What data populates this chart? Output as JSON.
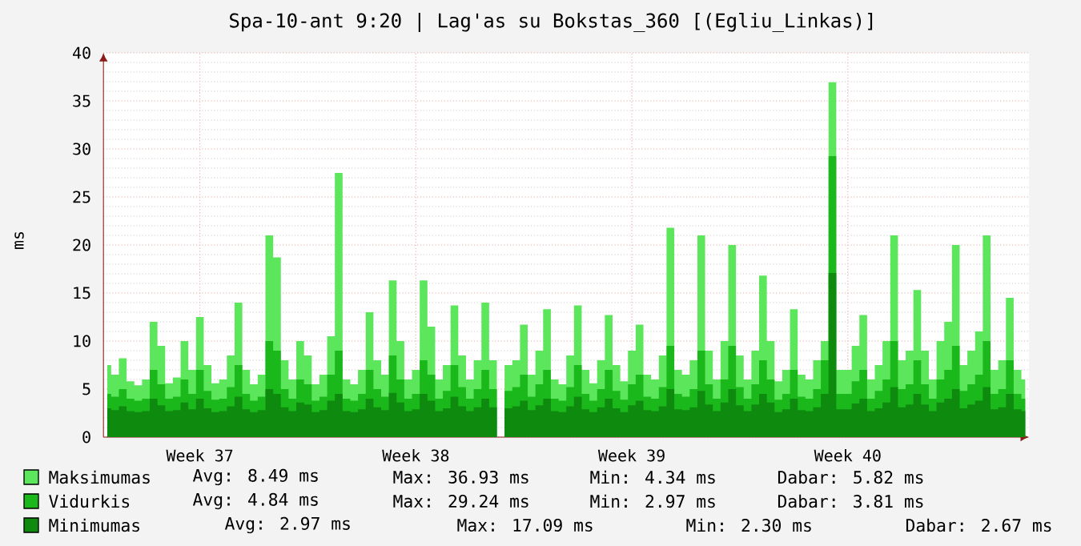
{
  "chart_data": {
    "type": "area",
    "title": "Spa-10-ant 9:20 | Lag'as su Bokstas_360 [(Egliu_Linkas)]",
    "ylabel": "ms",
    "categories": [
      null,
      null,
      null,
      null,
      null,
      null,
      null,
      null,
      null,
      null,
      null,
      null,
      "Week 37",
      null,
      null,
      null,
      null,
      null,
      null,
      null,
      null,
      null,
      null,
      null,
      null,
      null,
      null,
      null,
      null,
      null,
      null,
      null,
      null,
      null,
      null,
      null,
      null,
      null,
      null,
      null,
      "Week 38",
      null,
      null,
      null,
      null,
      null,
      null,
      null,
      null,
      null,
      null,
      null,
      null,
      null,
      null,
      null,
      null,
      null,
      null,
      null,
      null,
      null,
      null,
      null,
      null,
      null,
      null,
      null,
      "Week 39",
      null,
      null,
      null,
      null,
      null,
      null,
      null,
      null,
      null,
      null,
      null,
      null,
      null,
      null,
      null,
      null,
      null,
      null,
      null,
      null,
      null,
      null,
      null,
      null,
      null,
      null,
      null,
      "Week 40",
      null,
      null,
      null,
      null,
      null,
      null,
      null,
      null,
      null,
      null,
      null,
      null,
      null,
      null,
      null,
      null,
      null,
      null,
      null,
      null,
      null,
      null,
      null
    ],
    "series": [
      {
        "name": "Maksimumas",
        "color": "#5ce65c",
        "values": [
          7.5,
          6.5,
          8.2,
          5.8,
          5.4,
          6.0,
          12.0,
          9.5,
          5.6,
          6.2,
          10.0,
          7.0,
          12.5,
          7.5,
          5.6,
          6.0,
          8.5,
          14.0,
          7.0,
          5.5,
          6.5,
          21.0,
          18.7,
          8.0,
          6.0,
          10.0,
          8.5,
          5.5,
          6.5,
          10.5,
          27.5,
          6.0,
          5.5,
          7.0,
          13.0,
          8.0,
          6.5,
          16.3,
          10.0,
          6.0,
          7.0,
          16.3,
          11.5,
          6.0,
          7.5,
          13.7,
          8.5,
          6.0,
          8.0,
          14.0,
          8.0,
          null,
          7.5,
          8.0,
          11.7,
          6.5,
          9.0,
          13.3,
          6.0,
          5.5,
          8.5,
          13.7,
          7.0,
          5.6,
          8.0,
          12.7,
          7.5,
          5.8,
          9.0,
          11.7,
          6.5,
          6.0,
          8.5,
          21.8,
          7.0,
          6.5,
          8.0,
          21.0,
          9.0,
          6.0,
          10.0,
          20.0,
          8.5,
          6.0,
          9.0,
          16.8,
          10.0,
          5.8,
          7.0,
          13.3,
          6.5,
          6.0,
          8.0,
          10.0,
          36.93,
          7.0,
          7.0,
          9.5,
          12.7,
          6.0,
          7.5,
          10.0,
          21.0,
          8.0,
          9.0,
          15.3,
          9.0,
          6.0,
          10.0,
          12.0,
          20.0,
          7.5,
          9.0,
          11.0,
          21.0,
          7.0,
          8.0,
          14.5,
          7.0,
          6.0
        ]
      },
      {
        "name": "Vidurkis",
        "color": "#1ab81a",
        "values": [
          4.5,
          4.2,
          5.0,
          4.0,
          3.8,
          4.0,
          7.0,
          5.5,
          4.0,
          4.2,
          6.0,
          4.5,
          7.0,
          4.8,
          3.9,
          4.0,
          5.2,
          7.5,
          4.5,
          3.8,
          4.2,
          10.0,
          9.0,
          5.0,
          4.0,
          6.0,
          5.5,
          3.8,
          4.2,
          6.5,
          9.0,
          4.0,
          3.8,
          4.5,
          7.0,
          5.0,
          4.2,
          8.5,
          6.0,
          4.0,
          4.5,
          8.0,
          6.5,
          4.0,
          4.8,
          7.5,
          5.2,
          4.0,
          5.0,
          7.0,
          5.0,
          null,
          4.8,
          5.2,
          6.5,
          4.2,
          5.5,
          7.0,
          4.0,
          3.8,
          5.2,
          7.5,
          4.5,
          3.8,
          5.0,
          7.0,
          4.8,
          3.9,
          5.5,
          6.5,
          4.2,
          4.0,
          5.2,
          9.5,
          4.5,
          4.2,
          5.0,
          9.0,
          5.5,
          4.0,
          6.0,
          9.5,
          5.2,
          4.0,
          5.5,
          8.0,
          6.0,
          3.9,
          4.5,
          7.0,
          4.2,
          4.0,
          5.0,
          8.0,
          29.24,
          4.5,
          4.5,
          5.8,
          7.0,
          4.0,
          4.8,
          6.0,
          10.0,
          5.0,
          5.5,
          8.0,
          5.5,
          4.0,
          6.0,
          7.0,
          9.5,
          4.8,
          5.5,
          6.5,
          10.0,
          4.5,
          5.0,
          8.0,
          4.5,
          4.0
        ]
      },
      {
        "name": "Minimumas",
        "color": "#0e8a0e",
        "values": [
          3.0,
          2.8,
          3.2,
          2.7,
          2.6,
          2.7,
          4.0,
          3.3,
          2.7,
          2.8,
          3.6,
          2.9,
          4.0,
          3.0,
          2.6,
          2.7,
          3.2,
          4.2,
          2.9,
          2.6,
          2.8,
          5.0,
          4.5,
          3.1,
          2.7,
          3.6,
          3.4,
          2.6,
          2.8,
          3.8,
          4.5,
          2.7,
          2.6,
          2.9,
          4.0,
          3.1,
          2.8,
          4.6,
          3.6,
          2.7,
          2.9,
          4.5,
          3.8,
          2.7,
          3.0,
          4.2,
          3.2,
          2.7,
          3.1,
          4.0,
          3.1,
          null,
          3.0,
          3.2,
          3.8,
          2.8,
          3.3,
          4.0,
          2.7,
          2.6,
          3.2,
          4.2,
          2.9,
          2.6,
          3.1,
          4.0,
          3.0,
          2.6,
          3.3,
          3.8,
          2.8,
          2.7,
          3.2,
          5.0,
          2.9,
          2.8,
          3.1,
          4.8,
          3.4,
          2.7,
          3.6,
          5.0,
          3.3,
          2.7,
          3.4,
          4.5,
          3.6,
          2.6,
          2.9,
          4.0,
          2.8,
          2.7,
          3.1,
          4.5,
          17.09,
          2.9,
          2.9,
          3.5,
          4.0,
          2.7,
          3.0,
          3.6,
          5.2,
          3.1,
          3.4,
          4.5,
          3.4,
          2.7,
          3.6,
          4.0,
          5.0,
          3.0,
          3.4,
          3.8,
          5.2,
          2.9,
          3.1,
          4.5,
          2.9,
          2.7
        ]
      }
    ],
    "ylim": [
      0,
      40
    ],
    "yticks": [
      0,
      5,
      10,
      15,
      20,
      25,
      30,
      35,
      40
    ],
    "grid": true,
    "legend": "bottom",
    "annotations": [
      "Avg: 8.49 ms",
      "Max: 36.93 ms",
      "Min: 4.34 ms",
      "Dabar: 5.82 ms",
      "Avg: 4.84 ms",
      "Max: 29.24 ms",
      "Min: 2.97 ms",
      "Dabar: 3.81 ms",
      "Avg: 2.97 ms",
      "Max: 17.09 ms",
      "Min: 2.30 ms",
      "Dabar: 2.67 ms"
    ]
  }
}
